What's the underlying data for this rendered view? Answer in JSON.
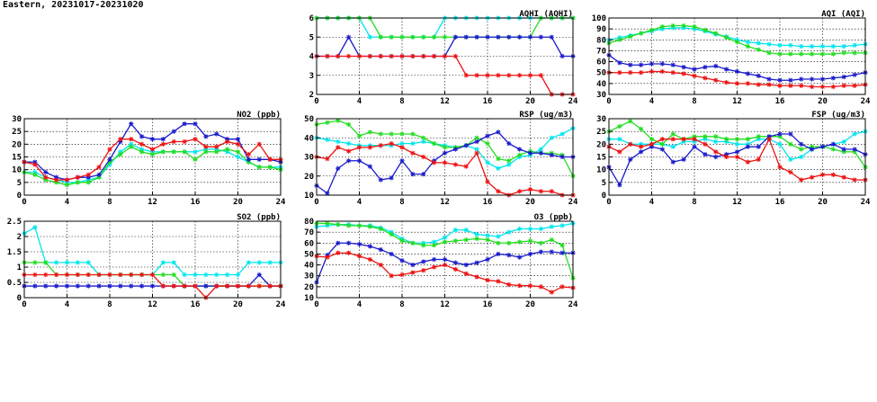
{
  "figure_title": "Eastern, 20231017-20231020",
  "colors": {
    "cyan": "#00e5ee",
    "green": "#22dd22",
    "blue": "#1a1acc",
    "red": "#ee1111"
  },
  "chart_data": [
    {
      "type": "line",
      "title": "AQHI (AQHI)",
      "xlim": [
        0,
        24
      ],
      "xticks": [
        0,
        4,
        8,
        12,
        16,
        20,
        24
      ],
      "ylim": [
        2,
        6
      ],
      "yticks": [
        2,
        3,
        4,
        5,
        6
      ],
      "grid": true,
      "series": [
        {
          "color": "cyan",
          "values": [
            6,
            6,
            6,
            6,
            6,
            5,
            5,
            5,
            5,
            5,
            5,
            5,
            6,
            6,
            6,
            6,
            6,
            6,
            6,
            6,
            6,
            6,
            6,
            6,
            6
          ]
        },
        {
          "color": "green",
          "values": [
            6,
            6,
            6,
            6,
            6,
            6,
            5,
            5,
            5,
            5,
            5,
            5,
            5,
            5,
            5,
            5,
            5,
            5,
            5,
            5,
            5,
            6,
            6,
            6,
            6
          ]
        },
        {
          "color": "blue",
          "values": [
            4,
            4,
            4,
            5,
            4,
            4,
            4,
            4,
            4,
            4,
            4,
            4,
            4,
            5,
            5,
            5,
            5,
            5,
            5,
            5,
            5,
            5,
            5,
            4,
            4
          ]
        },
        {
          "color": "red",
          "values": [
            4,
            4,
            4,
            4,
            4,
            4,
            4,
            4,
            4,
            4,
            4,
            4,
            4,
            4,
            3,
            3,
            3,
            3,
            3,
            3,
            3,
            3,
            2,
            2,
            2
          ]
        }
      ]
    },
    {
      "type": "line",
      "title": "AQI (AQI)",
      "xlim": [
        0,
        24
      ],
      "xticks": [
        0,
        4,
        8,
        12,
        16,
        20,
        24
      ],
      "ylim": [
        30,
        100
      ],
      "yticks": [
        30,
        40,
        50,
        60,
        70,
        80,
        90,
        100
      ],
      "grid": true,
      "series": [
        {
          "color": "cyan",
          "values": [
            80,
            82,
            84,
            86,
            88,
            90,
            91,
            91,
            90,
            88,
            85,
            83,
            80,
            78,
            77,
            76,
            75,
            75,
            74,
            74,
            74,
            74,
            74,
            75,
            76
          ]
        },
        {
          "color": "green",
          "values": [
            77,
            80,
            83,
            86,
            89,
            92,
            93,
            93,
            92,
            89,
            86,
            82,
            78,
            74,
            71,
            68,
            67,
            67,
            67,
            67,
            67,
            67,
            68,
            68,
            68
          ]
        },
        {
          "color": "blue",
          "values": [
            66,
            59,
            57,
            57,
            58,
            58,
            57,
            55,
            53,
            55,
            56,
            53,
            51,
            49,
            47,
            44,
            43,
            43,
            44,
            44,
            44,
            45,
            46,
            48,
            50
          ]
        },
        {
          "color": "red",
          "values": [
            50,
            50,
            50,
            50,
            51,
            51,
            50,
            49,
            47,
            45,
            43,
            41,
            40,
            40,
            39,
            39,
            38,
            38,
            38,
            37,
            37,
            37,
            38,
            38,
            39
          ]
        }
      ]
    },
    {
      "type": "line",
      "title": "NO2 (ppb)",
      "xlim": [
        0,
        24
      ],
      "xticks": [
        0,
        4,
        8,
        12,
        16,
        20,
        24
      ],
      "ylim": [
        0,
        30
      ],
      "yticks": [
        0,
        5,
        10,
        15,
        20,
        25,
        30
      ],
      "grid": true,
      "series": [
        {
          "color": "cyan",
          "values": [
            9,
            9,
            7,
            6,
            5,
            5,
            6,
            7,
            12,
            17,
            20,
            18,
            17,
            17,
            17,
            17,
            17,
            18,
            18,
            17,
            15,
            13,
            11,
            11,
            11
          ]
        },
        {
          "color": "green",
          "values": [
            9,
            8,
            6,
            5,
            4,
            5,
            5,
            7,
            13,
            16,
            19,
            17,
            16,
            17,
            17,
            17,
            14,
            17,
            17,
            18,
            17,
            13,
            11,
            11,
            10
          ]
        },
        {
          "color": "blue",
          "values": [
            13,
            13,
            9,
            7,
            6,
            7,
            7,
            8,
            14,
            21,
            28,
            23,
            22,
            22,
            25,
            28,
            28,
            23,
            24,
            22,
            22,
            14,
            14,
            14,
            13
          ]
        },
        {
          "color": "red",
          "values": [
            13,
            12,
            7,
            6,
            6,
            7,
            8,
            11,
            18,
            22,
            22,
            20,
            18,
            20,
            21,
            21,
            22,
            19,
            19,
            21,
            20,
            16,
            20,
            14,
            14
          ]
        }
      ]
    },
    {
      "type": "line",
      "title": "RSP (ug/m3)",
      "xlim": [
        0,
        24
      ],
      "xticks": [
        0,
        4,
        8,
        12,
        16,
        20,
        24
      ],
      "ylim": [
        10,
        50
      ],
      "yticks": [
        10,
        20,
        30,
        40,
        50
      ],
      "grid": true,
      "series": [
        {
          "color": "cyan",
          "values": [
            40,
            39,
            38,
            37,
            36,
            36,
            36,
            36,
            37,
            37,
            38,
            37,
            36,
            35,
            36,
            34,
            27,
            24,
            26,
            30,
            31,
            34,
            40,
            42,
            45
          ]
        },
        {
          "color": "green",
          "values": [
            47,
            48,
            49,
            47,
            41,
            43,
            42,
            42,
            42,
            42,
            40,
            37,
            35,
            35,
            36,
            40,
            37,
            29,
            28,
            31,
            33,
            32,
            32,
            31,
            20
          ]
        },
        {
          "color": "blue",
          "values": [
            15,
            11,
            24,
            28,
            28,
            25,
            18,
            19,
            28,
            21,
            21,
            28,
            32,
            34,
            36,
            38,
            41,
            43,
            37,
            34,
            32,
            32,
            31,
            30,
            30
          ]
        },
        {
          "color": "red",
          "values": [
            30,
            29,
            35,
            33,
            35,
            35,
            36,
            37,
            35,
            32,
            30,
            27,
            27,
            26,
            25,
            32,
            17,
            12,
            10,
            12,
            13,
            12,
            12,
            10,
            10
          ]
        }
      ]
    },
    {
      "type": "line",
      "title": "FSP (ug/m3)",
      "xlim": [
        0,
        24
      ],
      "xticks": [
        0,
        4,
        8,
        12,
        16,
        20,
        24
      ],
      "ylim": [
        0,
        30
      ],
      "yticks": [
        0,
        5,
        10,
        15,
        20,
        25,
        30
      ],
      "grid": true,
      "series": [
        {
          "color": "cyan",
          "values": [
            22,
            22,
            20,
            20,
            20,
            20,
            19,
            21,
            21,
            22,
            21,
            21,
            20,
            20,
            22,
            22,
            20,
            14,
            15,
            18,
            19,
            20,
            21,
            24,
            25
          ]
        },
        {
          "color": "green",
          "values": [
            25,
            27,
            29,
            26,
            22,
            20,
            24,
            22,
            23,
            23,
            23,
            22,
            22,
            22,
            23,
            23,
            23,
            20,
            18,
            19,
            19,
            18,
            17,
            17,
            11
          ]
        },
        {
          "color": "blue",
          "values": [
            11,
            4,
            14,
            17,
            19,
            18,
            13,
            14,
            19,
            16,
            15,
            16,
            17,
            19,
            19,
            23,
            24,
            24,
            20,
            18,
            19,
            20,
            18,
            18,
            16
          ]
        },
        {
          "color": "red",
          "values": [
            19,
            17,
            20,
            19,
            20,
            22,
            22,
            22,
            22,
            20,
            17,
            15,
            15,
            13,
            14,
            22,
            11,
            9,
            6,
            7,
            8,
            8,
            7,
            6,
            6
          ]
        }
      ]
    },
    {
      "type": "line",
      "title": "SO2 (ppb)",
      "xlim": [
        0,
        24
      ],
      "xticks": [
        0,
        4,
        8,
        12,
        16,
        20,
        24
      ],
      "ylim": [
        0,
        2.5
      ],
      "yticks": [
        0,
        0.5,
        1,
        1.5,
        2,
        2.5
      ],
      "grid": true,
      "series": [
        {
          "color": "cyan",
          "values": [
            2.1,
            2.3,
            1.15,
            1.15,
            1.15,
            1.15,
            1.15,
            0.75,
            0.75,
            0.75,
            0.75,
            0.75,
            0.75,
            1.15,
            1.15,
            0.75,
            0.75,
            0.75,
            0.75,
            0.75,
            0.75,
            1.15,
            1.15,
            1.15,
            1.15
          ]
        },
        {
          "color": "green",
          "values": [
            1.15,
            1.15,
            1.15,
            0.75,
            0.75,
            0.75,
            0.75,
            0.75,
            0.75,
            0.75,
            0.75,
            0.75,
            0.75,
            0.75,
            0.75,
            0.38,
            0.38,
            0.38,
            0.38,
            0.38,
            0.38,
            0.38,
            0.38,
            0.38,
            0.38
          ]
        },
        {
          "color": "blue",
          "values": [
            0.38,
            0.38,
            0.38,
            0.38,
            0.38,
            0.38,
            0.38,
            0.38,
            0.38,
            0.38,
            0.38,
            0.38,
            0.38,
            0.38,
            0.38,
            0.38,
            0.38,
            0.38,
            0.38,
            0.38,
            0.38,
            0.38,
            0.75,
            0.38,
            0.38
          ]
        },
        {
          "color": "red",
          "values": [
            0.75,
            0.75,
            0.75,
            0.75,
            0.75,
            0.75,
            0.75,
            0.75,
            0.75,
            0.75,
            0.75,
            0.75,
            0.75,
            0.38,
            0.38,
            0.38,
            0.38,
            0.0,
            0.38,
            0.38,
            0.38,
            0.38,
            0.38,
            0.38,
            0.38
          ]
        }
      ]
    },
    {
      "type": "line",
      "title": "O3 (ppb)",
      "xlim": [
        0,
        24
      ],
      "xticks": [
        0,
        4,
        8,
        12,
        16,
        20,
        24
      ],
      "ylim": [
        10,
        80
      ],
      "yticks": [
        10,
        20,
        30,
        40,
        50,
        60,
        70,
        80
      ],
      "grid": true,
      "series": [
        {
          "color": "cyan",
          "values": [
            75,
            76,
            77,
            77,
            76,
            76,
            74,
            70,
            64,
            60,
            60,
            61,
            65,
            72,
            72,
            68,
            67,
            66,
            70,
            73,
            73,
            73,
            75,
            76,
            78
          ]
        },
        {
          "color": "green",
          "values": [
            78,
            78,
            77,
            76,
            76,
            75,
            73,
            68,
            62,
            60,
            58,
            58,
            61,
            62,
            63,
            64,
            63,
            60,
            60,
            61,
            62,
            60,
            63,
            58,
            28
          ]
        },
        {
          "color": "blue",
          "values": [
            24,
            49,
            60,
            60,
            59,
            57,
            54,
            50,
            44,
            40,
            43,
            45,
            45,
            42,
            40,
            42,
            45,
            50,
            49,
            47,
            50,
            52,
            52,
            51,
            51
          ]
        },
        {
          "color": "red",
          "values": [
            48,
            47,
            51,
            51,
            48,
            45,
            40,
            30,
            31,
            33,
            35,
            38,
            40,
            36,
            32,
            29,
            26,
            25,
            22,
            21,
            21,
            20,
            15,
            20,
            19
          ]
        }
      ]
    }
  ]
}
